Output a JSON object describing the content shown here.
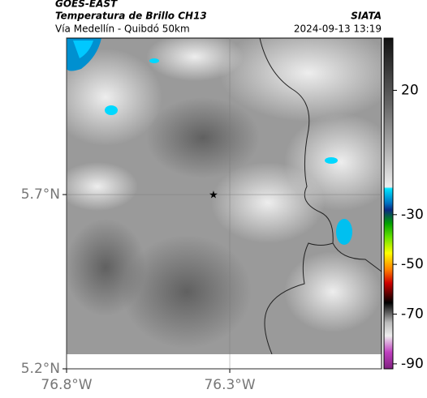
{
  "header": {
    "source": "GOES-EAST",
    "title": "Temperatura de Brillo CH13",
    "brand": "SIATA",
    "subtitle": "Vía Medellín - Quibdó 50km",
    "timestamp": "2024-09-13 13:19"
  },
  "map": {
    "xlim": [
      -76.8,
      -75.835
    ],
    "ylim": [
      5.2,
      6.149
    ],
    "xticks": [
      {
        "value": -76.8,
        "label": "76.8°W"
      },
      {
        "value": -76.3,
        "label": "76.3°W"
      }
    ],
    "yticks": [
      {
        "value": 5.7,
        "label": "5.7°N"
      },
      {
        "value": 5.2,
        "label": "5.2°N"
      }
    ],
    "marker": {
      "lon": -76.35,
      "lat": 5.7
    }
  },
  "colorbar": {
    "lim": [
      -92,
      41
    ],
    "ticks": [
      20,
      -30,
      -50,
      -70,
      -90
    ]
  }
}
